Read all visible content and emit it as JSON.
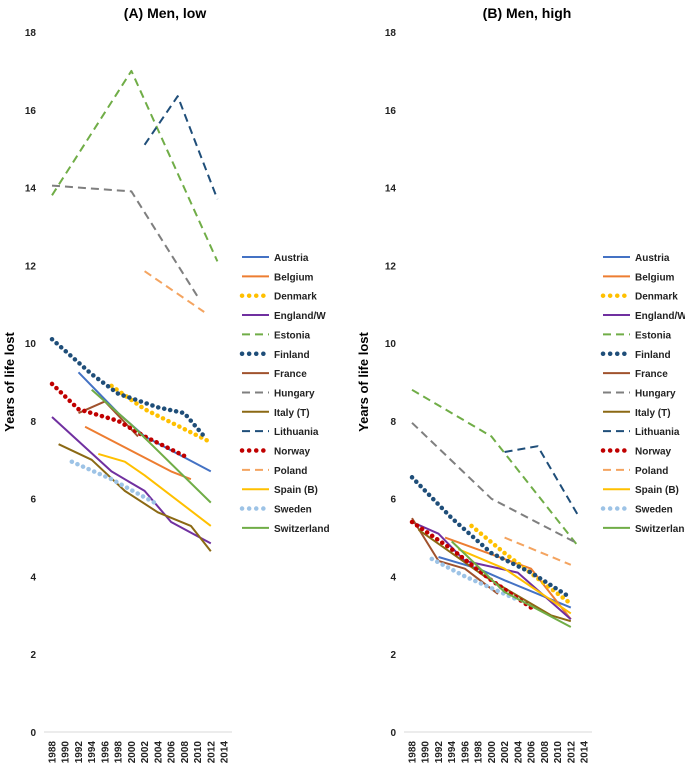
{
  "ylabel": "Years of life lost",
  "x_ticks": [
    "1988",
    "1990",
    "1992",
    "1994",
    "1996",
    "1998",
    "2000",
    "2002",
    "2004",
    "2006",
    "2008",
    "2010",
    "2012",
    "2014"
  ],
  "y_ticks": [
    0,
    2,
    4,
    6,
    8,
    10,
    12,
    14,
    16,
    18
  ],
  "chart_data": [
    {
      "type": "line",
      "title": "(A)  Men, low",
      "ylabel": "Years of life lost",
      "xlim": [
        1988,
        2014
      ],
      "ylim": [
        0,
        18
      ],
      "legend_position": "right",
      "series": [
        {
          "name": "Austria",
          "color": "#4472C4",
          "style": "solid",
          "x": [
            1992,
            1998,
            2002,
            2012
          ],
          "y": [
            9.25,
            8.2,
            7.6,
            6.7
          ]
        },
        {
          "name": "Belgium",
          "color": "#ED7D31",
          "style": "solid",
          "x": [
            1993,
            2006,
            2009
          ],
          "y": [
            7.85,
            6.7,
            6.5
          ]
        },
        {
          "name": "Denmark",
          "color": "#FFC000",
          "style": "dotted",
          "x": [
            1997,
            2002,
            2012
          ],
          "y": [
            8.9,
            8.3,
            7.45
          ]
        },
        {
          "name": "England/W",
          "color": "#7030A0",
          "style": "solid",
          "x": [
            1988,
            1997,
            2002,
            2006,
            2012
          ],
          "y": [
            8.1,
            6.7,
            6.2,
            5.4,
            4.85
          ]
        },
        {
          "name": "Estonia",
          "color": "#70AD47",
          "style": "dashed",
          "x": [
            1988,
            2000,
            2013
          ],
          "y": [
            13.8,
            17.0,
            12.1
          ]
        },
        {
          "name": "Finland",
          "color": "#1F4E79",
          "style": "dotted",
          "x": [
            1988,
            1994,
            1998,
            2004,
            2008,
            2011
          ],
          "y": [
            10.1,
            9.2,
            8.7,
            8.35,
            8.2,
            7.6
          ]
        },
        {
          "name": "France",
          "color": "#A0522D",
          "style": "solid",
          "x": [
            1992,
            1996,
            2001
          ],
          "y": [
            8.2,
            8.5,
            7.6
          ]
        },
        {
          "name": "Hungary",
          "color": "#7F7F7F",
          "style": "dashed",
          "x": [
            1988,
            2000,
            2010
          ],
          "y": [
            14.05,
            13.9,
            11.2
          ]
        },
        {
          "name": "Italy (T)",
          "color": "#8B6914",
          "style": "solid",
          "x": [
            1989,
            1994,
            1999,
            2004,
            2009,
            2012
          ],
          "y": [
            7.4,
            7.0,
            6.2,
            5.65,
            5.3,
            4.65
          ]
        },
        {
          "name": "Lithuania",
          "color": "#1F4E79",
          "style": "dashed",
          "x": [
            2002,
            2007,
            2013
          ],
          "y": [
            15.1,
            16.35,
            13.7
          ]
        },
        {
          "name": "Norway",
          "color": "#C00000",
          "style": "dotted",
          "x": [
            1988,
            1992,
            1998,
            2002,
            2008
          ],
          "y": [
            8.95,
            8.3,
            8.0,
            7.6,
            7.1
          ]
        },
        {
          "name": "Poland",
          "color": "#F4A460",
          "style": "dashed",
          "x": [
            2002,
            2011
          ],
          "y": [
            11.85,
            10.8
          ]
        },
        {
          "name": "Spain (B)",
          "color": "#FFC000",
          "style": "solid",
          "x": [
            1995,
            1999,
            2002,
            2012
          ],
          "y": [
            7.15,
            6.95,
            6.6,
            5.3
          ]
        },
        {
          "name": "Sweden",
          "color": "#9DC3E6",
          "style": "dotted",
          "x": [
            1991,
            1997,
            2004
          ],
          "y": [
            6.95,
            6.5,
            5.85
          ]
        },
        {
          "name": "Switzerland",
          "color": "#70AD47",
          "style": "solid",
          "x": [
            1994,
            2000,
            2012
          ],
          "y": [
            8.8,
            7.9,
            5.9
          ]
        }
      ]
    },
    {
      "type": "line",
      "title": "(B)  Men, high",
      "ylabel": "Years of life lost",
      "xlim": [
        1988,
        2014
      ],
      "ylim": [
        0,
        18
      ],
      "legend_position": "right",
      "series": [
        {
          "name": "Austria",
          "color": "#4472C4",
          "style": "solid",
          "x": [
            1992,
            1998,
            2002,
            2012
          ],
          "y": [
            4.5,
            4.2,
            3.9,
            3.2
          ]
        },
        {
          "name": "Belgium",
          "color": "#ED7D31",
          "style": "solid",
          "x": [
            1993,
            2006,
            2012
          ],
          "y": [
            5.0,
            4.2,
            2.9
          ]
        },
        {
          "name": "Denmark",
          "color": "#FFC000",
          "style": "dotted",
          "x": [
            1997,
            2002,
            2012
          ],
          "y": [
            5.3,
            4.6,
            3.3
          ]
        },
        {
          "name": "England/W",
          "color": "#7030A0",
          "style": "solid",
          "x": [
            1988,
            1992,
            1996,
            2004,
            2012
          ],
          "y": [
            5.4,
            5.1,
            4.4,
            4.1,
            2.9
          ]
        },
        {
          "name": "Estonia",
          "color": "#70AD47",
          "style": "dashed",
          "x": [
            1988,
            2000,
            2013
          ],
          "y": [
            8.8,
            7.6,
            4.8
          ]
        },
        {
          "name": "Finland",
          "color": "#1F4E79",
          "style": "dotted",
          "x": [
            1988,
            1994,
            2000,
            2006,
            2012
          ],
          "y": [
            6.55,
            5.5,
            4.6,
            4.1,
            3.45
          ]
        },
        {
          "name": "France",
          "color": "#A0522D",
          "style": "solid",
          "x": [
            1988,
            1992,
            1996,
            2001
          ],
          "y": [
            5.5,
            4.4,
            4.2,
            3.55
          ]
        },
        {
          "name": "Hungary",
          "color": "#7F7F7F",
          "style": "dashed",
          "x": [
            1988,
            2000,
            2013
          ],
          "y": [
            7.95,
            6.0,
            4.85
          ]
        },
        {
          "name": "Italy (T)",
          "color": "#8B6914",
          "style": "solid",
          "x": [
            1989,
            1994,
            1999,
            2004,
            2009,
            2012
          ],
          "y": [
            5.2,
            4.6,
            4.0,
            3.5,
            3.0,
            2.85
          ]
        },
        {
          "name": "Lithuania",
          "color": "#1F4E79",
          "style": "dashed",
          "x": [
            2002,
            2007,
            2013
          ],
          "y": [
            7.2,
            7.35,
            5.6
          ]
        },
        {
          "name": "Norway",
          "color": "#C00000",
          "style": "dotted",
          "x": [
            1988,
            1994,
            2000,
            2006
          ],
          "y": [
            5.4,
            4.7,
            3.9,
            3.2
          ]
        },
        {
          "name": "Poland",
          "color": "#F4A460",
          "style": "dashed",
          "x": [
            2002,
            2012
          ],
          "y": [
            5.0,
            4.3
          ]
        },
        {
          "name": "Spain (B)",
          "color": "#FFC000",
          "style": "solid",
          "x": [
            1995,
            2002,
            2012
          ],
          "y": [
            4.7,
            4.2,
            3.05
          ]
        },
        {
          "name": "Sweden",
          "color": "#9DC3E6",
          "style": "dotted",
          "x": [
            1991,
            1996,
            2004
          ],
          "y": [
            4.45,
            4.0,
            3.4
          ]
        },
        {
          "name": "Switzerland",
          "color": "#70AD47",
          "style": "solid",
          "x": [
            1994,
            2002,
            2012
          ],
          "y": [
            4.9,
            3.6,
            2.7
          ]
        }
      ]
    }
  ]
}
